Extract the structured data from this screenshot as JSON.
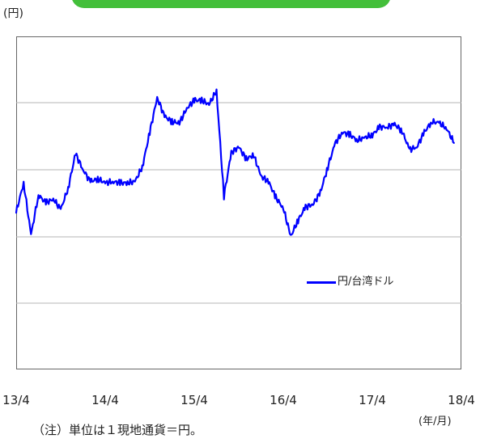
{
  "header": {
    "unit_label": "(円)"
  },
  "note": "（注）単位は１現地通貨＝円。",
  "legend": {
    "label": "円/台湾ドル",
    "color": "#0000ff"
  },
  "chart_data": {
    "type": "line",
    "title": "",
    "xlabel": "(年/月)",
    "ylabel": "(円)",
    "x_tick_labels": [
      "13/4",
      "14/4",
      "15/4",
      "16/4",
      "17/4",
      "18/4"
    ],
    "y_tick_labels": [],
    "grid": true,
    "legend_position": "right",
    "series": [
      {
        "name": "円/台湾ドル",
        "color": "#0000ff",
        "x": [
          "2013-04",
          "2013-05",
          "2013-06",
          "2013-07",
          "2013-08",
          "2013-09",
          "2013-10",
          "2013-11",
          "2013-12",
          "2014-01",
          "2014-02",
          "2014-03",
          "2014-04",
          "2014-05",
          "2014-06",
          "2014-07",
          "2014-08",
          "2014-09",
          "2014-10",
          "2014-11",
          "2014-12",
          "2015-01",
          "2015-02",
          "2015-03",
          "2015-04",
          "2015-05",
          "2015-06",
          "2015-07",
          "2015-08",
          "2015-09",
          "2015-10",
          "2015-11",
          "2015-12",
          "2016-01",
          "2016-02",
          "2016-03",
          "2016-04",
          "2016-05",
          "2016-06",
          "2016-07",
          "2016-08",
          "2016-09",
          "2016-10",
          "2016-11",
          "2016-12",
          "2017-01",
          "2017-02",
          "2017-03",
          "2017-04",
          "2017-05",
          "2017-06",
          "2017-07",
          "2017-08",
          "2017-09",
          "2017-10",
          "2017-11",
          "2017-12",
          "2018-01",
          "2018-02",
          "2018-03"
        ],
        "values": [
          3.18,
          3.4,
          3.01,
          3.31,
          3.25,
          3.28,
          3.2,
          3.36,
          3.62,
          3.5,
          3.41,
          3.43,
          3.4,
          3.41,
          3.4,
          3.4,
          3.41,
          3.52,
          3.78,
          4.04,
          3.9,
          3.86,
          3.85,
          3.96,
          4.02,
          4.02,
          3.99,
          4.09,
          3.3,
          3.63,
          3.67,
          3.58,
          3.61,
          3.45,
          3.41,
          3.29,
          3.21,
          3.0,
          3.12,
          3.22,
          3.24,
          3.33,
          3.52,
          3.7,
          3.78,
          3.76,
          3.72,
          3.74,
          3.76,
          3.82,
          3.82,
          3.84,
          3.79,
          3.65,
          3.67,
          3.78,
          3.86,
          3.85,
          3.81,
          3.7
        ]
      }
    ]
  }
}
